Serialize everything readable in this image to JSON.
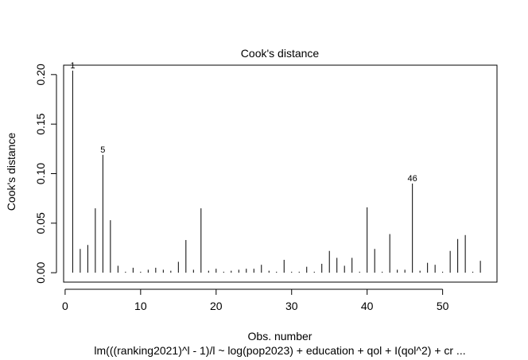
{
  "chart_data": {
    "type": "bar",
    "title": "Cook's distance",
    "xlabel": "Obs. number",
    "ylabel": "Cook's distance",
    "subtitle": "lm(((ranking2021)^l - 1)/l ~ log(pop2023) + education + qol + I(qol^2) + cr ...",
    "xlim": [
      -0.2,
      57.2
    ],
    "ylim": [
      -0.0095,
      0.2095
    ],
    "xticks": [
      0,
      10,
      20,
      30,
      40,
      50
    ],
    "yticks": [
      0.0,
      0.05,
      0.1,
      0.15,
      0.2
    ],
    "ytick_labels": [
      "0.00",
      "0.05",
      "0.10",
      "0.15",
      "0.20"
    ],
    "x": [
      1,
      2,
      3,
      4,
      5,
      6,
      7,
      8,
      9,
      10,
      11,
      12,
      13,
      14,
      15,
      16,
      17,
      18,
      19,
      20,
      21,
      22,
      23,
      24,
      25,
      26,
      27,
      28,
      29,
      30,
      31,
      32,
      33,
      34,
      35,
      36,
      37,
      38,
      39,
      40,
      41,
      42,
      43,
      44,
      45,
      46,
      47,
      48,
      49,
      50,
      51,
      52,
      53,
      54,
      55
    ],
    "values": [
      0.204,
      0.024,
      0.028,
      0.065,
      0.119,
      0.053,
      0.007,
      0.001,
      0.005,
      0.001,
      0.003,
      0.005,
      0.003,
      0.002,
      0.011,
      0.033,
      0.003,
      0.065,
      0.002,
      0.004,
      0.001,
      0.002,
      0.003,
      0.004,
      0.004,
      0.008,
      0.002,
      0.001,
      0.013,
      0.001,
      0.001,
      0.006,
      0.001,
      0.009,
      0.022,
      0.015,
      0.007,
      0.015,
      0.001,
      0.066,
      0.024,
      0.001,
      0.039,
      0.003,
      0.003,
      0.09,
      0.002,
      0.01,
      0.008,
      0.001,
      0.022,
      0.034,
      0.038,
      0.001,
      0.012
    ],
    "point_labels": [
      {
        "x": 1,
        "label": "1"
      },
      {
        "x": 5,
        "label": "5"
      },
      {
        "x": 46,
        "label": "46"
      }
    ],
    "grid": false,
    "legend": "none"
  }
}
